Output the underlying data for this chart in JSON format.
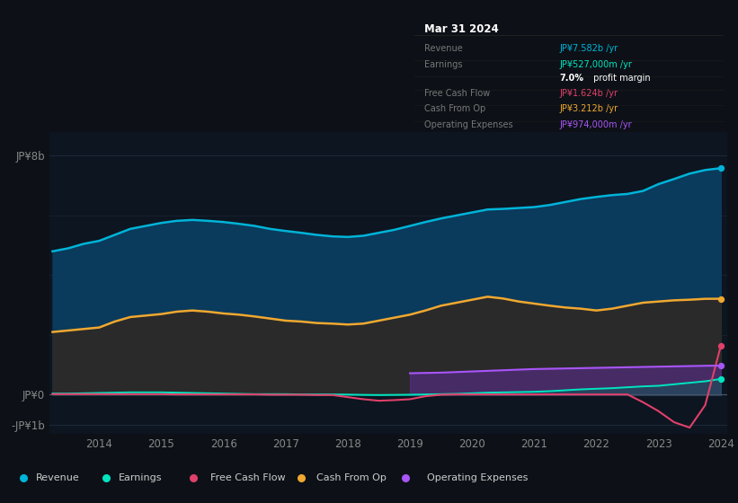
{
  "background_color": "#0d1117",
  "chart_area_color": "#0d1520",
  "years": [
    2013.25,
    2013.5,
    2013.75,
    2014.0,
    2014.25,
    2014.5,
    2014.75,
    2015.0,
    2015.25,
    2015.5,
    2015.75,
    2016.0,
    2016.25,
    2016.5,
    2016.75,
    2017.0,
    2017.25,
    2017.5,
    2017.75,
    2018.0,
    2018.25,
    2018.5,
    2018.75,
    2019.0,
    2019.25,
    2019.5,
    2019.75,
    2020.0,
    2020.25,
    2020.5,
    2020.75,
    2021.0,
    2021.25,
    2021.5,
    2021.75,
    2022.0,
    2022.25,
    2022.5,
    2022.75,
    2023.0,
    2023.25,
    2023.5,
    2023.75,
    2024.0
  ],
  "revenue": [
    4.8,
    4.9,
    5.05,
    5.15,
    5.35,
    5.55,
    5.65,
    5.75,
    5.82,
    5.85,
    5.82,
    5.78,
    5.72,
    5.65,
    5.55,
    5.48,
    5.42,
    5.35,
    5.3,
    5.28,
    5.32,
    5.42,
    5.52,
    5.65,
    5.78,
    5.9,
    6.0,
    6.1,
    6.2,
    6.22,
    6.25,
    6.28,
    6.35,
    6.45,
    6.55,
    6.62,
    6.68,
    6.72,
    6.82,
    7.05,
    7.22,
    7.4,
    7.52,
    7.582
  ],
  "cash_from_op": [
    2.1,
    2.15,
    2.2,
    2.25,
    2.45,
    2.6,
    2.65,
    2.7,
    2.78,
    2.82,
    2.78,
    2.72,
    2.68,
    2.62,
    2.55,
    2.48,
    2.45,
    2.4,
    2.38,
    2.35,
    2.38,
    2.48,
    2.58,
    2.68,
    2.82,
    2.98,
    3.08,
    3.18,
    3.28,
    3.22,
    3.12,
    3.05,
    2.98,
    2.92,
    2.88,
    2.82,
    2.88,
    2.98,
    3.08,
    3.12,
    3.16,
    3.18,
    3.21,
    3.212
  ],
  "earnings": [
    0.04,
    0.04,
    0.05,
    0.06,
    0.07,
    0.08,
    0.08,
    0.08,
    0.07,
    0.06,
    0.05,
    0.04,
    0.03,
    0.02,
    0.02,
    0.02,
    0.01,
    0.01,
    0.01,
    0.005,
    -0.005,
    -0.01,
    -0.005,
    0.0,
    0.01,
    0.02,
    0.03,
    0.05,
    0.07,
    0.08,
    0.09,
    0.1,
    0.12,
    0.15,
    0.18,
    0.2,
    0.22,
    0.25,
    0.28,
    0.3,
    0.35,
    0.4,
    0.45,
    0.527
  ],
  "free_cash_flow": [
    0.02,
    0.02,
    0.02,
    0.02,
    0.02,
    0.02,
    0.02,
    0.02,
    0.01,
    0.01,
    0.01,
    0.01,
    0.01,
    0.01,
    0.0,
    0.0,
    0.0,
    -0.01,
    -0.01,
    -0.08,
    -0.15,
    -0.2,
    -0.18,
    -0.15,
    -0.05,
    0.0,
    0.01,
    0.01,
    0.01,
    0.01,
    0.01,
    0.01,
    0.01,
    0.01,
    0.01,
    0.01,
    0.01,
    0.01,
    -0.25,
    -0.55,
    -0.92,
    -1.1,
    -0.35,
    1.624
  ],
  "operating_expenses": [
    0.0,
    0.0,
    0.0,
    0.0,
    0.0,
    0.0,
    0.0,
    0.0,
    0.0,
    0.0,
    0.0,
    0.0,
    0.0,
    0.0,
    0.0,
    0.0,
    0.0,
    0.0,
    0.0,
    0.0,
    0.0,
    0.0,
    0.0,
    0.72,
    0.73,
    0.74,
    0.76,
    0.78,
    0.8,
    0.82,
    0.84,
    0.86,
    0.87,
    0.88,
    0.89,
    0.9,
    0.91,
    0.92,
    0.93,
    0.94,
    0.95,
    0.96,
    0.97,
    0.974
  ],
  "revenue_color": "#00b4d8",
  "cash_from_op_color": "#f0a830",
  "earnings_color": "#00e5c0",
  "free_cash_flow_color": "#e0406a",
  "operating_expenses_color": "#a855f7",
  "revenue_fill_color": "#0a3a5c",
  "cash_from_op_fill_color": "#2a2a2a",
  "operating_expenses_fill_color": "#5b2d8e",
  "ylim_min": -1.3,
  "ylim_max": 8.8,
  "ytick_8b_val": 8.0,
  "ytick_0_val": 0.0,
  "ytick_m1b_val": -1.0,
  "xtick_years": [
    2014,
    2015,
    2016,
    2017,
    2018,
    2019,
    2020,
    2021,
    2022,
    2023,
    2024
  ],
  "tooltip_date": "Mar 31 2024",
  "tooltip_bg": "#060a0f",
  "tooltip_border": "#2a2a2a",
  "legend_items": [
    {
      "label": "Revenue",
      "color": "#00b4d8"
    },
    {
      "label": "Earnings",
      "color": "#00e5c0"
    },
    {
      "label": "Free Cash Flow",
      "color": "#e0406a"
    },
    {
      "label": "Cash From Op",
      "color": "#f0a830"
    },
    {
      "label": "Operating Expenses",
      "color": "#a855f7"
    }
  ]
}
